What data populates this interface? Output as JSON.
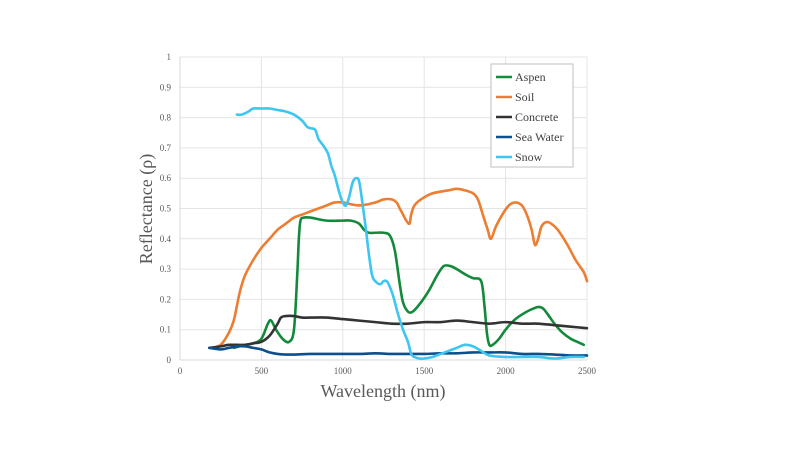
{
  "chart_data": {
    "type": "line",
    "title": "",
    "xlabel": "Wavelength (nm)",
    "ylabel": "Reflectance (ρ)",
    "xlim": [
      0,
      2500
    ],
    "ylim": [
      0,
      1
    ],
    "x_ticks": [
      0,
      500,
      1000,
      1500,
      2000,
      2500
    ],
    "y_ticks": [
      0,
      0.1,
      0.2,
      0.3,
      0.4,
      0.5,
      0.6,
      0.7,
      0.8,
      0.9,
      1
    ],
    "x_tick_labels": [
      "0",
      "500",
      "1000",
      "1500",
      "2000",
      "2500"
    ],
    "y_tick_labels": [
      "0",
      "0.1",
      "0.2",
      "0.3",
      "0.4",
      "0.5",
      "0.6",
      "0.7",
      "0.8",
      "0.9",
      "1"
    ],
    "grid": true,
    "legend_position": "top-right",
    "series": [
      {
        "name": "Aspen",
        "color": "#138a3b",
        "x": [
          330,
          400,
          450,
          500,
          540,
          560,
          590,
          630,
          670,
          700,
          720,
          730,
          740,
          760,
          800,
          900,
          1000,
          1050,
          1100,
          1130,
          1160,
          1200,
          1250,
          1290,
          1320,
          1350,
          1370,
          1400,
          1430,
          1480,
          1530,
          1580,
          1620,
          1660,
          1700,
          1760,
          1800,
          1850,
          1870,
          1885,
          1900,
          1920,
          1960,
          2000,
          2050,
          2100,
          2150,
          2200,
          2230,
          2260,
          2300,
          2350,
          2400,
          2440,
          2480
        ],
        "y": [
          0.04,
          0.05,
          0.055,
          0.07,
          0.12,
          0.13,
          0.1,
          0.07,
          0.06,
          0.1,
          0.28,
          0.4,
          0.46,
          0.47,
          0.47,
          0.46,
          0.46,
          0.46,
          0.45,
          0.43,
          0.42,
          0.42,
          0.42,
          0.41,
          0.36,
          0.25,
          0.19,
          0.16,
          0.16,
          0.19,
          0.23,
          0.28,
          0.31,
          0.31,
          0.3,
          0.28,
          0.27,
          0.26,
          0.18,
          0.09,
          0.05,
          0.05,
          0.07,
          0.1,
          0.13,
          0.15,
          0.165,
          0.175,
          0.17,
          0.15,
          0.12,
          0.09,
          0.07,
          0.06,
          0.05
        ]
      },
      {
        "name": "Soil",
        "color": "#ed7d31",
        "x": [
          190,
          250,
          300,
          330,
          350,
          370,
          400,
          450,
          500,
          550,
          600,
          650,
          700,
          750,
          800,
          850,
          900,
          950,
          1000,
          1100,
          1200,
          1250,
          1300,
          1330,
          1350,
          1370,
          1390,
          1410,
          1420,
          1440,
          1480,
          1550,
          1650,
          1700,
          1750,
          1800,
          1830,
          1860,
          1890,
          1910,
          1940,
          1980,
          2020,
          2060,
          2100,
          2130,
          2160,
          2180,
          2200,
          2220,
          2250,
          2280,
          2320,
          2380,
          2430,
          2480,
          2500
        ],
        "y": [
          0.04,
          0.05,
          0.09,
          0.13,
          0.18,
          0.23,
          0.28,
          0.33,
          0.37,
          0.4,
          0.43,
          0.45,
          0.47,
          0.48,
          0.49,
          0.5,
          0.51,
          0.52,
          0.52,
          0.51,
          0.52,
          0.53,
          0.53,
          0.52,
          0.5,
          0.48,
          0.46,
          0.45,
          0.48,
          0.51,
          0.53,
          0.55,
          0.56,
          0.565,
          0.56,
          0.55,
          0.53,
          0.48,
          0.43,
          0.4,
          0.44,
          0.48,
          0.51,
          0.52,
          0.51,
          0.48,
          0.43,
          0.38,
          0.4,
          0.44,
          0.455,
          0.45,
          0.43,
          0.38,
          0.33,
          0.29,
          0.26
        ]
      },
      {
        "name": "Concrete",
        "color": "#333333",
        "x": [
          180,
          250,
          300,
          350,
          400,
          450,
          500,
          550,
          600,
          620,
          650,
          700,
          750,
          800,
          900,
          1000,
          1100,
          1200,
          1300,
          1400,
          1500,
          1600,
          1700,
          1800,
          1900,
          2000,
          2100,
          2200,
          2300,
          2400,
          2500
        ],
        "y": [
          0.04,
          0.045,
          0.05,
          0.05,
          0.05,
          0.055,
          0.06,
          0.08,
          0.12,
          0.14,
          0.145,
          0.145,
          0.14,
          0.14,
          0.14,
          0.135,
          0.13,
          0.125,
          0.12,
          0.12,
          0.125,
          0.125,
          0.13,
          0.125,
          0.12,
          0.125,
          0.12,
          0.12,
          0.115,
          0.11,
          0.105
        ]
      },
      {
        "name": "Sea Water",
        "color": "#0d4f8b",
        "x": [
          180,
          250,
          300,
          350,
          400,
          450,
          500,
          550,
          600,
          650,
          700,
          800,
          900,
          1000,
          1100,
          1200,
          1300,
          1400,
          1500,
          1600,
          1700,
          1800,
          1900,
          2000,
          2100,
          2200,
          2300,
          2400,
          2500
        ],
        "y": [
          0.04,
          0.035,
          0.04,
          0.045,
          0.045,
          0.04,
          0.035,
          0.025,
          0.02,
          0.018,
          0.018,
          0.02,
          0.02,
          0.02,
          0.02,
          0.022,
          0.02,
          0.02,
          0.02,
          0.022,
          0.022,
          0.025,
          0.025,
          0.025,
          0.02,
          0.02,
          0.018,
          0.015,
          0.015
        ]
      },
      {
        "name": "Snow",
        "color": "#3ec6f0",
        "x": [
          350,
          380,
          420,
          450,
          500,
          550,
          600,
          650,
          700,
          750,
          780,
          800,
          830,
          850,
          870,
          890,
          910,
          930,
          950,
          980,
          1000,
          1020,
          1040,
          1060,
          1080,
          1100,
          1120,
          1140,
          1160,
          1180,
          1200,
          1230,
          1250,
          1270,
          1290,
          1310,
          1340,
          1370,
          1400,
          1420,
          1440,
          1470,
          1500,
          1550,
          1600,
          1650,
          1700,
          1750,
          1800,
          1850,
          1900,
          2000,
          2100,
          2200,
          2300,
          2400,
          2480
        ],
        "y": [
          0.81,
          0.81,
          0.82,
          0.83,
          0.83,
          0.83,
          0.825,
          0.82,
          0.81,
          0.79,
          0.77,
          0.765,
          0.76,
          0.73,
          0.715,
          0.7,
          0.68,
          0.64,
          0.61,
          0.55,
          0.52,
          0.51,
          0.54,
          0.585,
          0.6,
          0.59,
          0.52,
          0.44,
          0.35,
          0.28,
          0.26,
          0.25,
          0.26,
          0.26,
          0.24,
          0.21,
          0.15,
          0.1,
          0.06,
          0.02,
          0.01,
          0.005,
          0.005,
          0.01,
          0.02,
          0.03,
          0.04,
          0.05,
          0.045,
          0.03,
          0.015,
          0.01,
          0.01,
          0.01,
          0.005,
          0.01,
          0.01
        ]
      }
    ]
  }
}
